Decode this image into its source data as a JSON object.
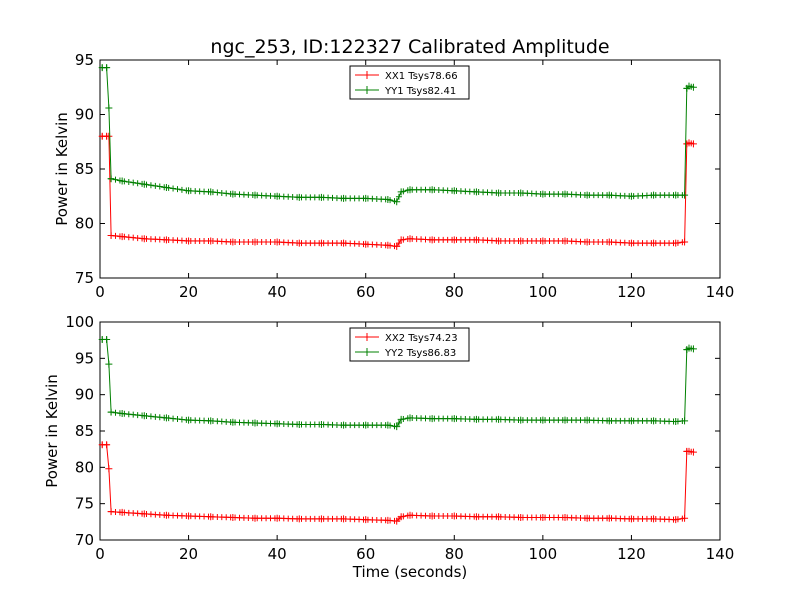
{
  "figure": {
    "title": "ngc_253, ID:122327 Calibrated Amplitude"
  },
  "chart_data": [
    {
      "type": "line",
      "ylabel": "Power in Kelvin",
      "xlabel": "",
      "xlim": [
        0,
        140
      ],
      "ylim": [
        75,
        95
      ],
      "xticks": [
        "0",
        "20",
        "40",
        "60",
        "80",
        "100",
        "120",
        "140"
      ],
      "yticks": [
        "75",
        "80",
        "85",
        "90",
        "95"
      ],
      "legend_position": "top-center",
      "grid": false,
      "series": [
        {
          "name": "XX1 Tsys78.66",
          "color": "#ff0000",
          "x": [
            0.5,
            1.5,
            2,
            2.5,
            5,
            10,
            15,
            20,
            25,
            30,
            35,
            40,
            45,
            50,
            55,
            60,
            65,
            67,
            68,
            70,
            75,
            80,
            85,
            90,
            95,
            100,
            105,
            110,
            115,
            120,
            125,
            130,
            132,
            132.5,
            133,
            134
          ],
          "y": [
            88.0,
            88.0,
            88.0,
            78.9,
            78.8,
            78.6,
            78.5,
            78.4,
            78.4,
            78.3,
            78.3,
            78.3,
            78.2,
            78.2,
            78.2,
            78.1,
            78.0,
            77.9,
            78.5,
            78.6,
            78.5,
            78.5,
            78.5,
            78.4,
            78.4,
            78.4,
            78.4,
            78.3,
            78.3,
            78.2,
            78.2,
            78.2,
            78.3,
            87.3,
            87.4,
            87.3
          ]
        },
        {
          "name": "YY1 Tsys82.41",
          "color": "#008000",
          "x": [
            0.5,
            1.5,
            2,
            2.5,
            5,
            10,
            15,
            20,
            25,
            30,
            35,
            40,
            45,
            50,
            55,
            60,
            65,
            67,
            68,
            70,
            75,
            80,
            85,
            90,
            95,
            100,
            105,
            110,
            115,
            120,
            125,
            130,
            132,
            132.5,
            133,
            134
          ],
          "y": [
            94.3,
            94.3,
            90.6,
            84.1,
            83.9,
            83.6,
            83.3,
            83.0,
            82.9,
            82.7,
            82.6,
            82.5,
            82.4,
            82.4,
            82.3,
            82.3,
            82.2,
            82.0,
            82.9,
            83.1,
            83.1,
            83.0,
            82.9,
            82.8,
            82.8,
            82.7,
            82.7,
            82.6,
            82.6,
            82.5,
            82.6,
            82.6,
            82.6,
            92.4,
            92.6,
            92.5
          ]
        }
      ]
    },
    {
      "type": "line",
      "ylabel": "Power in Kelvin",
      "xlabel": "Time (seconds)",
      "xlim": [
        0,
        140
      ],
      "ylim": [
        70,
        100
      ],
      "xticks": [
        "0",
        "20",
        "40",
        "60",
        "80",
        "100",
        "120",
        "140"
      ],
      "yticks": [
        "70",
        "75",
        "80",
        "85",
        "90",
        "95",
        "100"
      ],
      "legend_position": "top-center",
      "grid": false,
      "series": [
        {
          "name": "XX2 Tsys74.23",
          "color": "#ff0000",
          "x": [
            0.5,
            1.5,
            2,
            2.5,
            5,
            10,
            15,
            20,
            25,
            30,
            35,
            40,
            45,
            50,
            55,
            60,
            65,
            67,
            68,
            70,
            75,
            80,
            85,
            90,
            95,
            100,
            105,
            110,
            115,
            120,
            125,
            130,
            132,
            132.5,
            133,
            134
          ],
          "y": [
            83.1,
            83.1,
            79.8,
            73.9,
            73.8,
            73.6,
            73.4,
            73.3,
            73.2,
            73.1,
            73.0,
            73.0,
            72.9,
            72.9,
            72.9,
            72.8,
            72.7,
            72.6,
            73.2,
            73.4,
            73.3,
            73.3,
            73.2,
            73.2,
            73.1,
            73.1,
            73.1,
            73.0,
            73.0,
            72.9,
            72.9,
            72.8,
            73.0,
            82.2,
            82.2,
            82.1
          ]
        },
        {
          "name": "YY2 Tsys86.83",
          "color": "#008000",
          "x": [
            0.5,
            1.5,
            2,
            2.5,
            5,
            10,
            15,
            20,
            25,
            30,
            35,
            40,
            45,
            50,
            55,
            60,
            65,
            67,
            68,
            70,
            75,
            80,
            85,
            90,
            95,
            100,
            105,
            110,
            115,
            120,
            125,
            130,
            132,
            132.5,
            133,
            134
          ],
          "y": [
            97.6,
            97.6,
            94.2,
            87.6,
            87.4,
            87.1,
            86.8,
            86.5,
            86.4,
            86.2,
            86.1,
            86.0,
            85.9,
            85.9,
            85.8,
            85.8,
            85.8,
            85.6,
            86.6,
            86.8,
            86.7,
            86.7,
            86.6,
            86.6,
            86.5,
            86.5,
            86.5,
            86.5,
            86.4,
            86.4,
            86.4,
            86.3,
            86.4,
            96.2,
            96.4,
            96.3
          ]
        }
      ]
    }
  ]
}
